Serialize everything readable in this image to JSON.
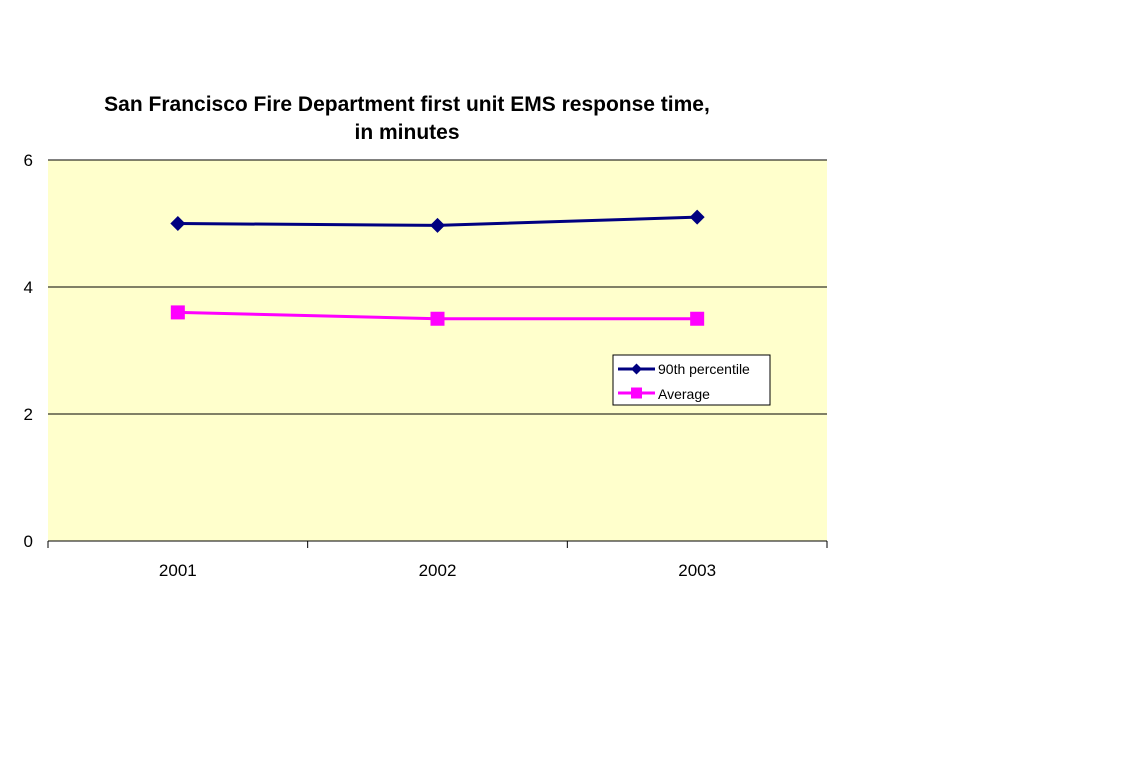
{
  "chart_data": {
    "type": "line",
    "title_lines": [
      "San Francisco Fire Department first unit EMS response time,",
      "in minutes"
    ],
    "categories": [
      "2001",
      "2002",
      "2003"
    ],
    "y_ticks": [
      "0",
      "2",
      "4",
      "6"
    ],
    "ylim": [
      0,
      6
    ],
    "grid": true,
    "legend_position": "right",
    "plot_background": "#ffffcc",
    "series": [
      {
        "name": "90th percentile",
        "values": [
          5.0,
          4.97,
          5.1
        ],
        "color": "#000080",
        "marker": "diamond"
      },
      {
        "name": "Average",
        "values": [
          3.6,
          3.5,
          3.5
        ],
        "color": "#ff00ff",
        "marker": "square"
      }
    ]
  }
}
